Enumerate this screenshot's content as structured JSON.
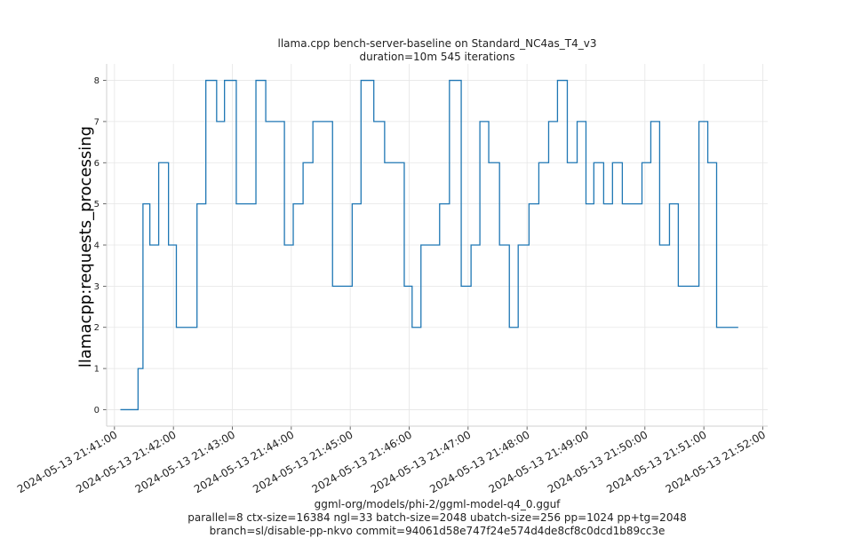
{
  "chart_data": {
    "type": "line",
    "title": "llama.cpp bench-server-baseline on Standard_NC4as_T4_v3",
    "subtitle": "duration=10m 545 iterations",
    "ylabel": "llamacpp:requests_processing",
    "xlabel_lines": [
      "ggml-org/models/phi-2/ggml-model-q4_0.gguf",
      "parallel=8 ctx-size=16384 ngl=33 batch-size=2048 ubatch-size=256 pp=1024 pp+tg=2048",
      "branch=sl/disable-pp-nkvo commit=94061d58e747f24e574d4de8cf8c0dcd1b89cc3e"
    ],
    "xlim": [
      "2024-05-13 21:40:52",
      "2024-05-13 21:52:05"
    ],
    "ylim": [
      -0.4,
      8.4
    ],
    "yticks": [
      0,
      1,
      2,
      3,
      4,
      5,
      6,
      7,
      8
    ],
    "xticks": [
      "2024-05-13 21:41:00",
      "2024-05-13 21:42:00",
      "2024-05-13 21:43:00",
      "2024-05-13 21:44:00",
      "2024-05-13 21:45:00",
      "2024-05-13 21:46:00",
      "2024-05-13 21:47:00",
      "2024-05-13 21:48:00",
      "2024-05-13 21:49:00",
      "2024-05-13 21:50:00",
      "2024-05-13 21:51:00",
      "2024-05-13 21:52:00"
    ],
    "grid": true,
    "series": [
      {
        "color": "#1f77b4",
        "step": "post",
        "x": [
          "2024-05-13 21:41:06",
          "2024-05-13 21:41:24",
          "2024-05-13 21:41:29",
          "2024-05-13 21:41:36",
          "2024-05-13 21:41:45",
          "2024-05-13 21:41:55",
          "2024-05-13 21:42:03",
          "2024-05-13 21:42:24",
          "2024-05-13 21:42:33",
          "2024-05-13 21:42:44",
          "2024-05-13 21:42:52",
          "2024-05-13 21:43:04",
          "2024-05-13 21:43:24",
          "2024-05-13 21:43:34",
          "2024-05-13 21:43:53",
          "2024-05-13 21:44:02",
          "2024-05-13 21:44:12",
          "2024-05-13 21:44:22",
          "2024-05-13 21:44:42",
          "2024-05-13 21:45:02",
          "2024-05-13 21:45:11",
          "2024-05-13 21:45:24",
          "2024-05-13 21:45:35",
          "2024-05-13 21:45:55",
          "2024-05-13 21:46:03",
          "2024-05-13 21:46:12",
          "2024-05-13 21:46:31",
          "2024-05-13 21:46:41",
          "2024-05-13 21:46:53",
          "2024-05-13 21:47:03",
          "2024-05-13 21:47:12",
          "2024-05-13 21:47:21",
          "2024-05-13 21:47:32",
          "2024-05-13 21:47:42",
          "2024-05-13 21:47:51",
          "2024-05-13 21:48:02",
          "2024-05-13 21:48:12",
          "2024-05-13 21:48:22",
          "2024-05-13 21:48:31",
          "2024-05-13 21:48:41",
          "2024-05-13 21:48:51",
          "2024-05-13 21:49:00",
          "2024-05-13 21:49:08",
          "2024-05-13 21:49:18",
          "2024-05-13 21:49:27",
          "2024-05-13 21:49:37",
          "2024-05-13 21:49:57",
          "2024-05-13 21:50:06",
          "2024-05-13 21:50:15",
          "2024-05-13 21:50:25",
          "2024-05-13 21:50:34",
          "2024-05-13 21:50:55",
          "2024-05-13 21:51:04",
          "2024-05-13 21:51:13",
          "2024-05-13 21:51:22",
          "2024-05-13 21:51:33",
          "2024-05-13 21:51:35"
        ],
        "y": [
          0,
          1,
          5,
          4,
          6,
          4,
          2,
          5,
          8,
          7,
          8,
          5,
          8,
          7,
          4,
          5,
          6,
          7,
          3,
          5,
          8,
          7,
          6,
          3,
          2,
          4,
          5,
          8,
          3,
          4,
          7,
          6,
          4,
          2,
          4,
          5,
          6,
          7,
          8,
          6,
          7,
          5,
          6,
          5,
          6,
          5,
          6,
          7,
          4,
          5,
          3,
          7,
          6,
          2,
          2,
          2,
          2
        ]
      }
    ]
  }
}
